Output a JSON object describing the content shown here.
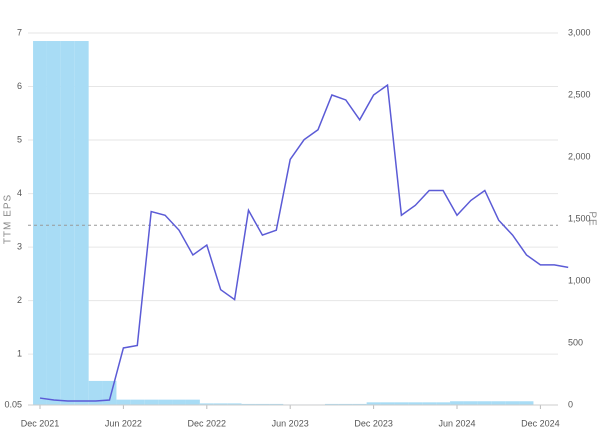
{
  "chart_data": {
    "type": "bar_line",
    "y_label": "TTM EPS",
    "y2_label": "PE",
    "x": [
      "2021-12",
      "2022-01",
      "2022-02",
      "2022-03",
      "2022-04",
      "2022-05",
      "2022-06",
      "2022-07",
      "2022-08",
      "2022-09",
      "2022-10",
      "2022-11",
      "2022-12",
      "2023-01",
      "2023-02",
      "2023-03",
      "2023-04",
      "2023-05",
      "2023-06",
      "2023-07",
      "2023-08",
      "2023-09",
      "2023-10",
      "2023-11",
      "2023-12",
      "2024-01",
      "2024-02",
      "2024-03",
      "2024-04",
      "2024-05",
      "2024-06",
      "2024-07",
      "2024-08",
      "2024-09",
      "2024-10",
      "2024-11",
      "2024-12",
      "2025-01",
      "2025-02"
    ],
    "xticks": [
      {
        "value": "2021-12",
        "label": "Dec 2021"
      },
      {
        "value": "2022-06",
        "label": "Jun 2022"
      },
      {
        "value": "2022-12",
        "label": "Dec 2022"
      },
      {
        "value": "2023-06",
        "label": "Jun 2023"
      },
      {
        "value": "2023-12",
        "label": "Dec 2023"
      },
      {
        "value": "2024-06",
        "label": "Jun 2024"
      },
      {
        "value": "2024-12",
        "label": "Dec 2024"
      }
    ],
    "series": [
      {
        "name": "TTM EPS",
        "type": "bar",
        "color": "#a8dcf5",
        "axis": "y",
        "values": [
          6.85,
          6.85,
          6.85,
          6.85,
          0.5,
          0.5,
          0.15,
          0.15,
          0.15,
          0.15,
          0.15,
          0.15,
          0.08,
          0.08,
          0.08,
          0.07,
          0.07,
          0.07,
          0.06,
          0.06,
          0.06,
          0.07,
          0.07,
          0.07,
          0.1,
          0.1,
          0.1,
          0.1,
          0.1,
          0.1,
          0.12,
          0.12,
          0.12,
          0.12,
          0.12,
          0.12,
          null,
          null,
          null
        ]
      },
      {
        "name": "PE",
        "type": "line",
        "color": "#5b5bd6",
        "axis": "y2",
        "values": [
          56,
          40,
          32,
          32,
          32,
          40,
          460,
          480,
          1560,
          1530,
          1410,
          1210,
          1290,
          930,
          850,
          1570,
          1370,
          1410,
          1980,
          2140,
          2220,
          2500,
          2460,
          2300,
          2500,
          2580,
          1530,
          1610,
          1730,
          1730,
          1530,
          1650,
          1730,
          1490,
          1370,
          1210,
          1130,
          1130,
          1110
        ]
      }
    ],
    "ylim": [
      0.05,
      7
    ],
    "yticks": [
      0.05,
      1,
      2,
      3,
      4,
      5,
      6,
      7
    ],
    "y2lim": [
      0,
      3000
    ],
    "y2ticks": [
      0,
      500,
      {
        "value": 1000,
        "label": "1,000"
      },
      {
        "value": 1500,
        "label": "1,500"
      },
      {
        "value": 2000,
        "label": "2,000"
      },
      {
        "value": 2500,
        "label": "2,500"
      },
      {
        "value": 3000,
        "label": "3,000"
      }
    ],
    "y2_reference": 1450,
    "grid": true
  }
}
